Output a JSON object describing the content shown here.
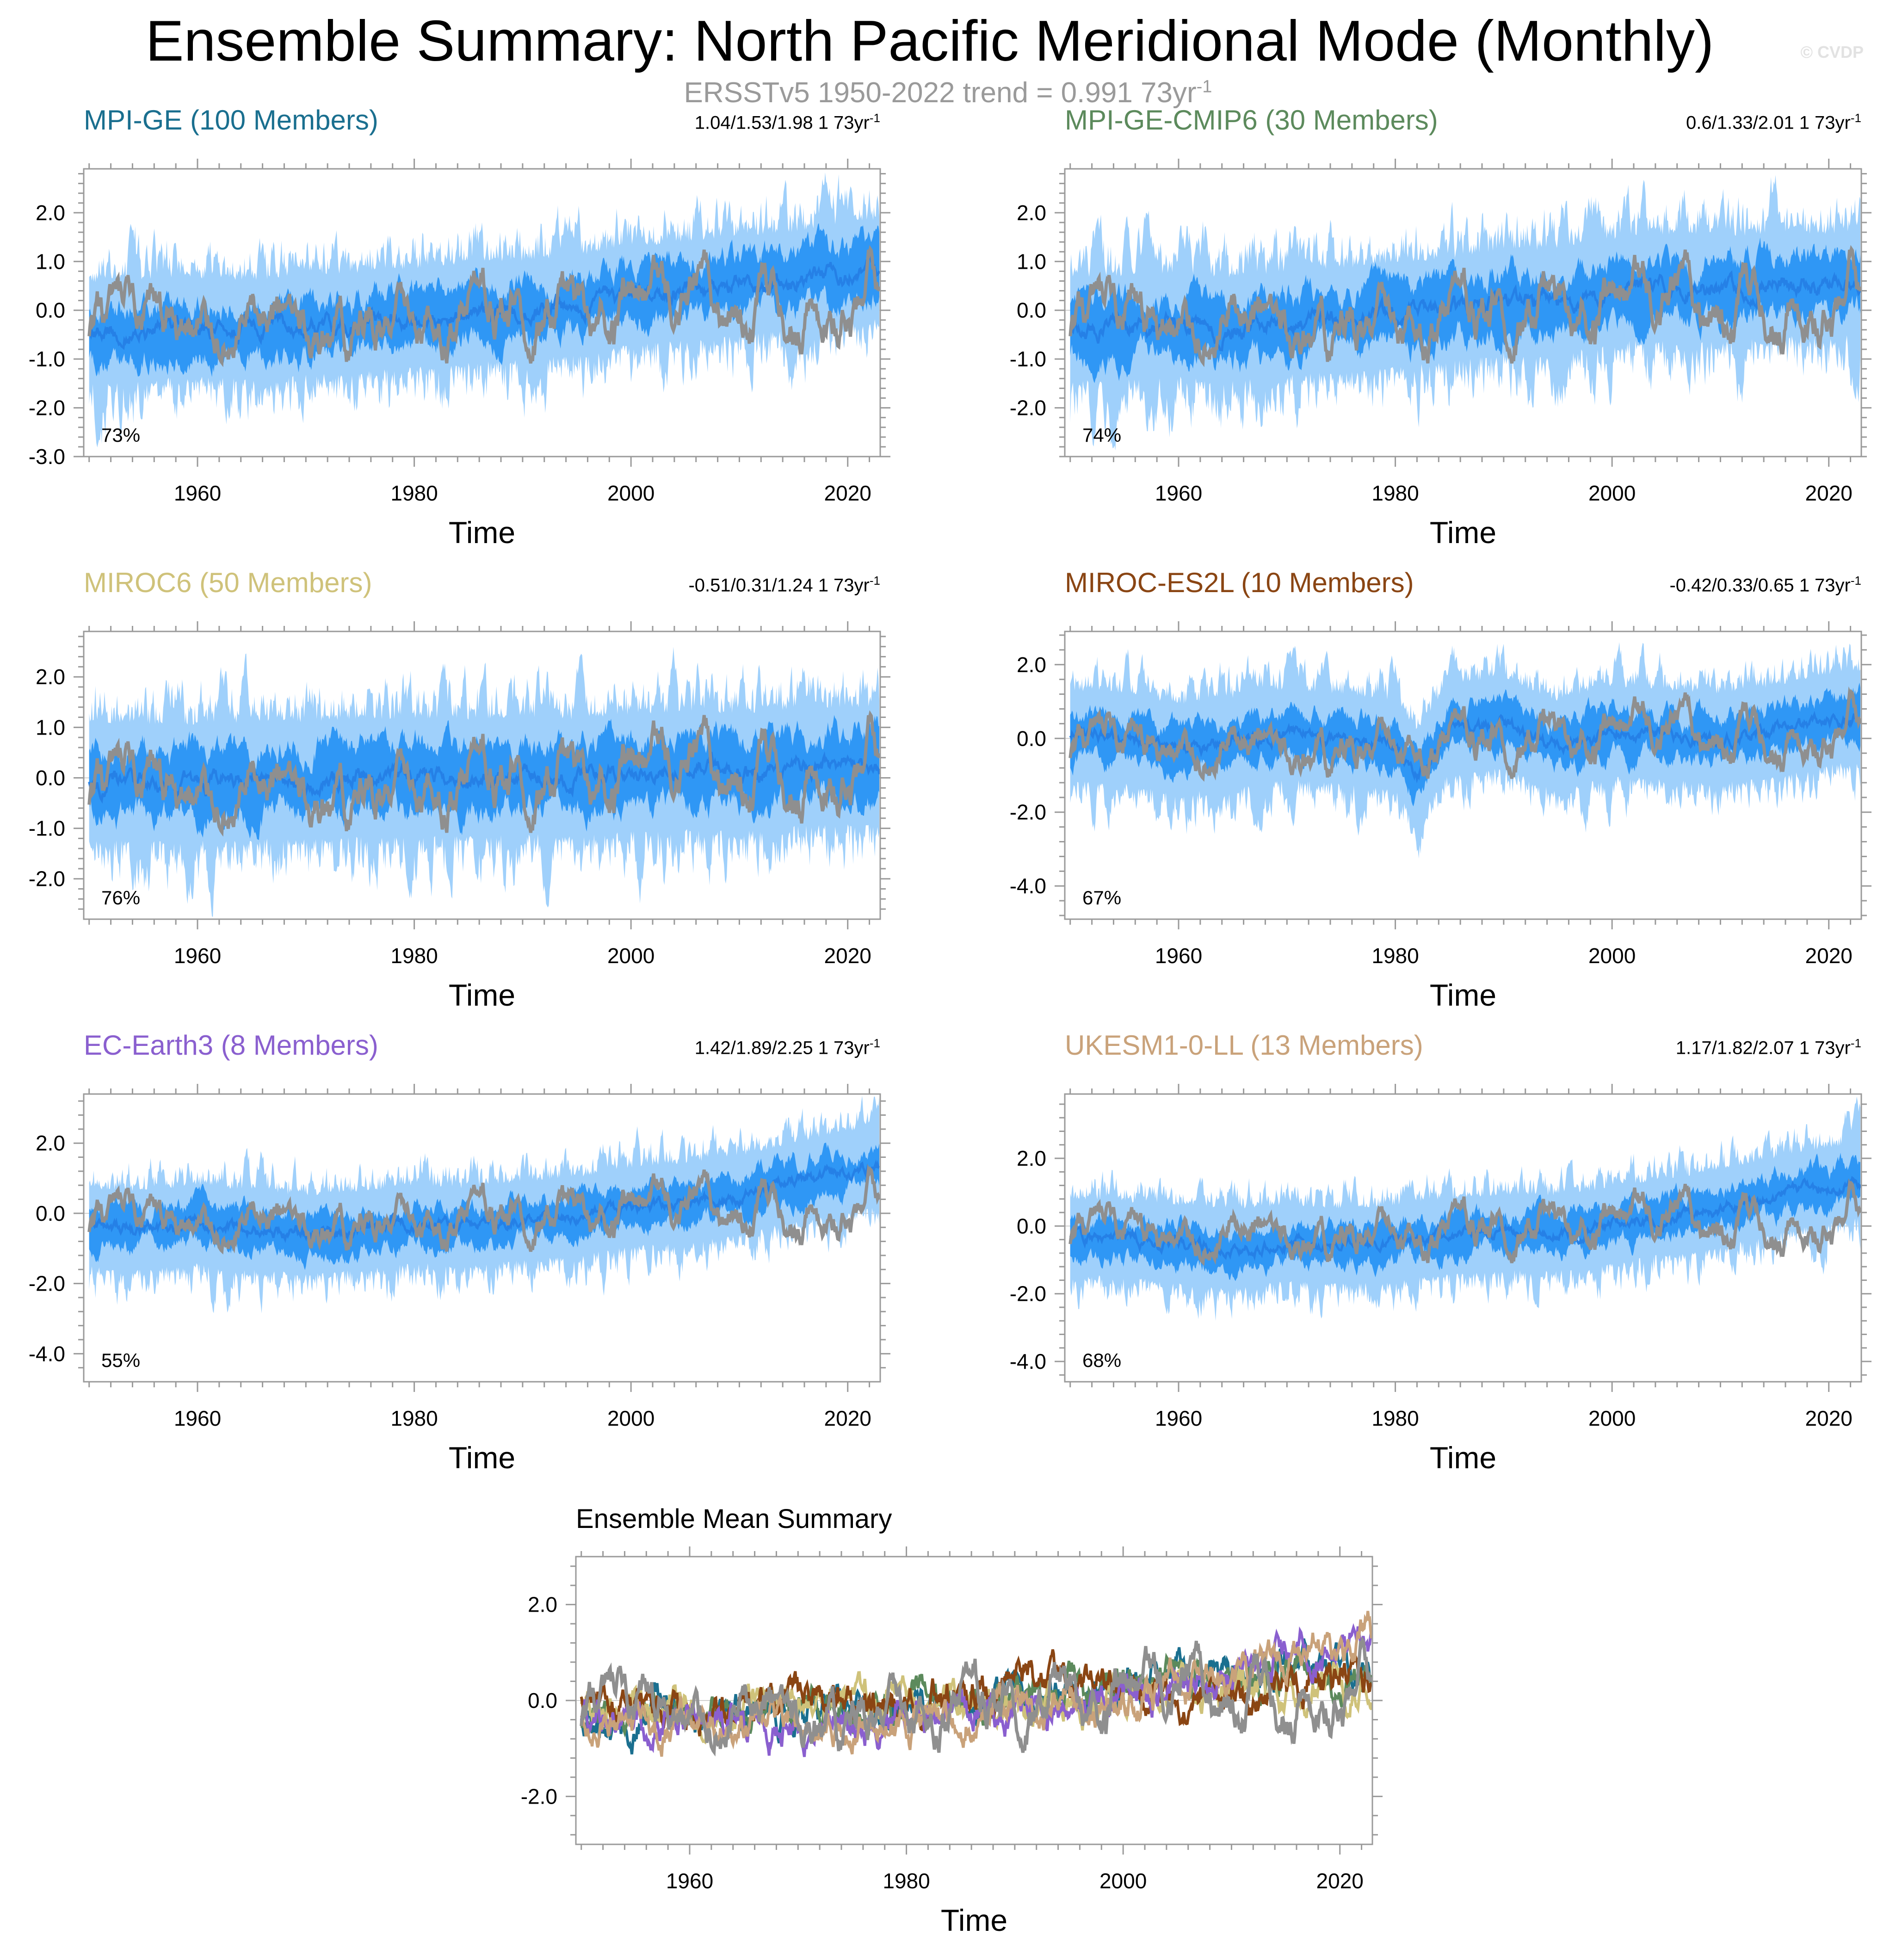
{
  "figure": {
    "title": "Ensemble Summary: North Pacific Meridional Mode (Monthly)",
    "subtitle_text": "ERSSTv5 1950-2022 trend = 0.991 73yr",
    "subtitle_exp": "-1",
    "watermark": "© CVDP",
    "x_axis_label": "Time",
    "colors": {
      "observations": "#8f8f8f",
      "spread_outer": "#9fd0fb",
      "spread_inner": "#2f97f5",
      "ensemble_mean": "#2580e6"
    }
  },
  "chart_data": [
    {
      "type": "line",
      "panel": "MPI-GE",
      "title": "MPI-GE (100 Members)",
      "title_color": "#1a6f8f",
      "stats": "1.04/1.53/1.98 1 73yr",
      "stats_exp": "-1",
      "percent": "73%",
      "xlim": [
        1949.5,
        2023.0
      ],
      "xticks": [
        1960,
        1980,
        2000,
        2020
      ],
      "xtick_labels": [
        "1960",
        "1980",
        "2000",
        "2020"
      ],
      "ylim": [
        -3.0,
        2.9
      ],
      "yticks": [
        2.0,
        1.0,
        0.0,
        -1.0,
        -2.0,
        -3.0
      ],
      "ytick_labels": [
        "2.0",
        "1.0",
        "0.0",
        "-1.0",
        "-2.0",
        "-3.0"
      ],
      "series": [
        {
          "name": "ensemble_mean",
          "x": [
            1950,
            1955,
            1960,
            1965,
            1970,
            1975,
            1980,
            1985,
            1990,
            1995,
            2000,
            2005,
            2010,
            2015,
            2020,
            2023
          ],
          "values": [
            -0.5,
            -0.4,
            -0.35,
            -0.4,
            -0.3,
            -0.25,
            -0.15,
            -0.05,
            0.0,
            0.1,
            0.3,
            0.4,
            0.5,
            0.6,
            0.8,
            0.85
          ]
        },
        {
          "name": "spread_outer_band",
          "half_width": 1.0
        },
        {
          "name": "spread_inner_band",
          "half_width": 0.55
        }
      ]
    },
    {
      "type": "line",
      "panel": "MPI-GE-CMIP6",
      "title": "MPI-GE-CMIP6 (30 Members)",
      "title_color": "#5c8a5c",
      "stats": "0.6/1.33/2.01 1 73yr",
      "stats_exp": "-1",
      "percent": "74%",
      "xlim": [
        1949.5,
        2023.0
      ],
      "xticks": [
        1960,
        1980,
        2000,
        2020
      ],
      "xtick_labels": [
        "1960",
        "1980",
        "2000",
        "2020"
      ],
      "ylim": [
        -3.0,
        2.9
      ],
      "yticks": [
        2.0,
        1.0,
        0.0,
        -1.0,
        -2.0
      ],
      "ytick_labels": [
        "2.0",
        "1.0",
        "0.0",
        "-1.0",
        "-2.0"
      ],
      "series": [
        {
          "name": "ensemble_mean",
          "x": [
            1950,
            1955,
            1960,
            1965,
            1970,
            1975,
            1980,
            1985,
            1990,
            1995,
            2000,
            2005,
            2010,
            2015,
            2020,
            2023
          ],
          "values": [
            -0.4,
            -0.35,
            -0.3,
            -0.4,
            -0.25,
            -0.2,
            -0.1,
            0.0,
            0.2,
            0.15,
            0.4,
            0.5,
            0.4,
            0.55,
            0.5,
            0.6
          ]
        },
        {
          "name": "spread_outer_band",
          "half_width": 1.05
        },
        {
          "name": "spread_inner_band",
          "half_width": 0.6
        }
      ]
    },
    {
      "type": "line",
      "panel": "MIROC6",
      "title": "MIROC6 (50 Members)",
      "title_color": "#cfc27a",
      "stats": "-0.51/0.31/1.24 1 73yr",
      "stats_exp": "-1",
      "percent": "76%",
      "xlim": [
        1949.5,
        2023.0
      ],
      "xticks": [
        1960,
        1980,
        2000,
        2020
      ],
      "xtick_labels": [
        "1960",
        "1980",
        "2000",
        "2020"
      ],
      "ylim": [
        -2.8,
        2.9
      ],
      "yticks": [
        2.0,
        1.0,
        0.0,
        -1.0,
        -2.0
      ],
      "ytick_labels": [
        "2.0",
        "1.0",
        "0.0",
        "-1.0",
        "-2.0"
      ],
      "series": [
        {
          "name": "ensemble_mean",
          "x": [
            1950,
            1955,
            1960,
            1965,
            1970,
            1975,
            1980,
            1985,
            1990,
            1995,
            2000,
            2005,
            2010,
            2015,
            2020,
            2023
          ],
          "values": [
            -0.05,
            -0.1,
            -0.1,
            -0.05,
            -0.05,
            0.0,
            0.0,
            0.0,
            0.05,
            0.0,
            0.1,
            0.15,
            0.1,
            0.2,
            0.25,
            0.2
          ]
        },
        {
          "name": "spread_outer_band",
          "half_width": 1.15
        },
        {
          "name": "spread_inner_band",
          "half_width": 0.65
        }
      ]
    },
    {
      "type": "line",
      "panel": "MIROC-ES2L",
      "title": "MIROC-ES2L (10 Members)",
      "title_color": "#8a4513",
      "stats": "-0.42/0.33/0.65 1 73yr",
      "stats_exp": "-1",
      "percent": "67%",
      "xlim": [
        1949.5,
        2023.0
      ],
      "xticks": [
        1960,
        1980,
        2000,
        2020
      ],
      "xtick_labels": [
        "1960",
        "1980",
        "2000",
        "2020"
      ],
      "ylim": [
        -4.9,
        2.9
      ],
      "yticks": [
        2.0,
        0.0,
        -2.0,
        -4.0
      ],
      "ytick_labels": [
        "2.0",
        "0.0",
        "-2.0",
        "-4.0"
      ],
      "series": [
        {
          "name": "ensemble_mean",
          "x": [
            1950,
            1955,
            1960,
            1965,
            1970,
            1975,
            1980,
            1982,
            1985,
            1990,
            1995,
            2000,
            2005,
            2010,
            2015,
            2020,
            2023
          ],
          "values": [
            0.1,
            0.0,
            -0.3,
            -0.1,
            0.1,
            0.0,
            -0.2,
            -1.0,
            0.3,
            0.4,
            -0.2,
            0.2,
            0.1,
            0.0,
            0.2,
            0.5,
            0.6
          ]
        },
        {
          "name": "spread_outer_band",
          "half_width": 1.2
        },
        {
          "name": "spread_inner_band",
          "half_width": 0.6
        }
      ]
    },
    {
      "type": "line",
      "panel": "EC-Earth3",
      "title": "EC-Earth3 (8 Members)",
      "title_color": "#8a5fcf",
      "stats": "1.42/1.89/2.25 1 73yr",
      "stats_exp": "-1",
      "percent": "55%",
      "xlim": [
        1949.5,
        2023.0
      ],
      "xticks": [
        1960,
        1980,
        2000,
        2020
      ],
      "xtick_labels": [
        "1960",
        "1980",
        "2000",
        "2020"
      ],
      "ylim": [
        -4.8,
        3.4
      ],
      "yticks": [
        2.0,
        0.0,
        -2.0,
        -4.0
      ],
      "ytick_labels": [
        "2.0",
        "0.0",
        "-2.0",
        "-4.0"
      ],
      "series": [
        {
          "name": "ensemble_mean",
          "x": [
            1950,
            1955,
            1960,
            1965,
            1970,
            1975,
            1980,
            1985,
            1990,
            1995,
            2000,
            2005,
            2010,
            2015,
            2020,
            2023
          ],
          "values": [
            -0.4,
            -0.5,
            -0.3,
            -0.5,
            -0.6,
            -0.5,
            -0.3,
            -0.4,
            -0.2,
            -0.1,
            0.2,
            0.3,
            0.5,
            0.9,
            1.2,
            1.3
          ]
        },
        {
          "name": "spread_outer_band",
          "half_width": 1.1
        },
        {
          "name": "spread_inner_band",
          "half_width": 0.55
        }
      ]
    },
    {
      "type": "line",
      "panel": "UKESM1-0-LL",
      "title": "UKESM1-0-LL (13 Members)",
      "title_color": "#c9a27a",
      "stats": "1.17/1.82/2.07 1 73yr",
      "stats_exp": "-1",
      "percent": "68%",
      "xlim": [
        1949.5,
        2023.0
      ],
      "xticks": [
        1960,
        1980,
        2000,
        2020
      ],
      "xtick_labels": [
        "1960",
        "1980",
        "2000",
        "2020"
      ],
      "ylim": [
        -4.6,
        3.9
      ],
      "yticks": [
        2.0,
        0.0,
        -2.0,
        -4.0
      ],
      "ytick_labels": [
        "2.0",
        "0.0",
        "-2.0",
        "-4.0"
      ],
      "series": [
        {
          "name": "ensemble_mean",
          "x": [
            1950,
            1955,
            1960,
            1965,
            1970,
            1975,
            1980,
            1985,
            1990,
            1995,
            2000,
            2005,
            2010,
            2015,
            2020,
            2023
          ],
          "values": [
            -0.3,
            -0.4,
            -0.5,
            -0.7,
            -0.5,
            -0.6,
            -0.5,
            -0.3,
            -0.2,
            -0.2,
            0.0,
            0.3,
            0.5,
            0.9,
            1.2,
            1.4
          ]
        },
        {
          "name": "spread_outer_band",
          "half_width": 1.1
        },
        {
          "name": "spread_inner_band",
          "half_width": 0.55
        }
      ]
    },
    {
      "type": "line",
      "panel": "Ensemble Mean Summary",
      "title": "Ensemble Mean Summary",
      "xlim": [
        1949.5,
        2023.0
      ],
      "xticks": [
        1960,
        1980,
        2000,
        2020
      ],
      "xtick_labels": [
        "1960",
        "1980",
        "2000",
        "2020"
      ],
      "ylim": [
        -3.0,
        3.0
      ],
      "yticks": [
        2.0,
        0.0,
        -2.0
      ],
      "ytick_labels": [
        "2.0",
        "0.0",
        "-2.0"
      ],
      "series": [
        {
          "name": "MPI-GE",
          "color": "#1a6f8f",
          "x": [
            1950,
            1960,
            1970,
            1980,
            1990,
            2000,
            2010,
            2020,
            2023
          ],
          "values": [
            -0.5,
            -0.35,
            -0.3,
            -0.15,
            0.0,
            0.3,
            0.5,
            0.8,
            0.85
          ]
        },
        {
          "name": "MPI-GE-CMIP6",
          "color": "#5c8a5c",
          "x": [
            1950,
            1960,
            1970,
            1980,
            1990,
            2000,
            2010,
            2020,
            2023
          ],
          "values": [
            -0.4,
            -0.3,
            -0.25,
            -0.1,
            0.2,
            0.4,
            0.4,
            0.5,
            0.6
          ]
        },
        {
          "name": "MIROC6",
          "color": "#cfc27a",
          "x": [
            1950,
            1960,
            1970,
            1980,
            1990,
            2000,
            2010,
            2020,
            2023
          ],
          "values": [
            -0.05,
            -0.1,
            -0.05,
            0.0,
            0.05,
            0.1,
            0.1,
            0.25,
            0.2
          ]
        },
        {
          "name": "MIROC-ES2L",
          "color": "#8a4513",
          "x": [
            1950,
            1960,
            1970,
            1980,
            1990,
            2000,
            2010,
            2020,
            2023
          ],
          "values": [
            0.1,
            -0.3,
            0.1,
            -0.2,
            0.4,
            0.2,
            0.0,
            0.5,
            0.6
          ]
        },
        {
          "name": "EC-Earth3",
          "color": "#8a5fcf",
          "x": [
            1950,
            1960,
            1970,
            1980,
            1990,
            2000,
            2010,
            2020,
            2023
          ],
          "values": [
            -0.4,
            -0.3,
            -0.6,
            -0.3,
            -0.2,
            0.2,
            0.5,
            1.2,
            1.3
          ]
        },
        {
          "name": "UKESM1-0-LL",
          "color": "#c9a27a",
          "x": [
            1950,
            1960,
            1970,
            1980,
            1990,
            2000,
            2010,
            2020,
            2023
          ],
          "values": [
            -0.3,
            -0.5,
            -0.5,
            -0.5,
            -0.2,
            0.0,
            0.5,
            1.2,
            1.4
          ]
        }
      ]
    }
  ]
}
